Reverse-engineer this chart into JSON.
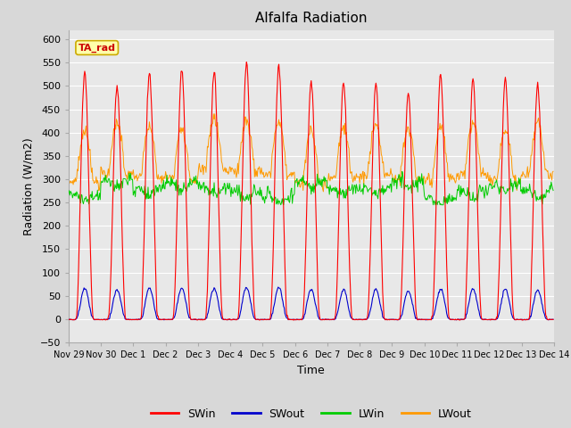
{
  "title": "Alfalfa Radiation",
  "xlabel": "Time",
  "ylabel": "Radiation (W/m2)",
  "ylim": [
    -50,
    620
  ],
  "yticks": [
    -50,
    0,
    50,
    100,
    150,
    200,
    250,
    300,
    350,
    400,
    450,
    500,
    550,
    600
  ],
  "fig_bg_color": "#d8d8d8",
  "plot_bg_color": "#e8e8e8",
  "grid_color": "#ffffff",
  "annotation_text": "TA_rad",
  "annotation_bg": "#ffffaa",
  "annotation_border": "#ccaa00",
  "colors": {
    "SWin": "#ff0000",
    "SWout": "#0000cc",
    "LWin": "#00cc00",
    "LWout": "#ff9900"
  },
  "legend_labels": [
    "SWin",
    "SWout",
    "LWin",
    "LWout"
  ],
  "n_days": 15,
  "dt_hours": 0.5,
  "tick_labels": [
    "Nov 29",
    "Nov 30",
    "Dec 1",
    "Dec 2",
    "Dec 3",
    "Dec 4",
    "Dec 5",
    "Dec 6",
    "Dec 7",
    "Dec 8",
    "Dec 9",
    "Dec 10",
    "Dec 11",
    "Dec 12",
    "Dec 13",
    "Dec 14"
  ]
}
